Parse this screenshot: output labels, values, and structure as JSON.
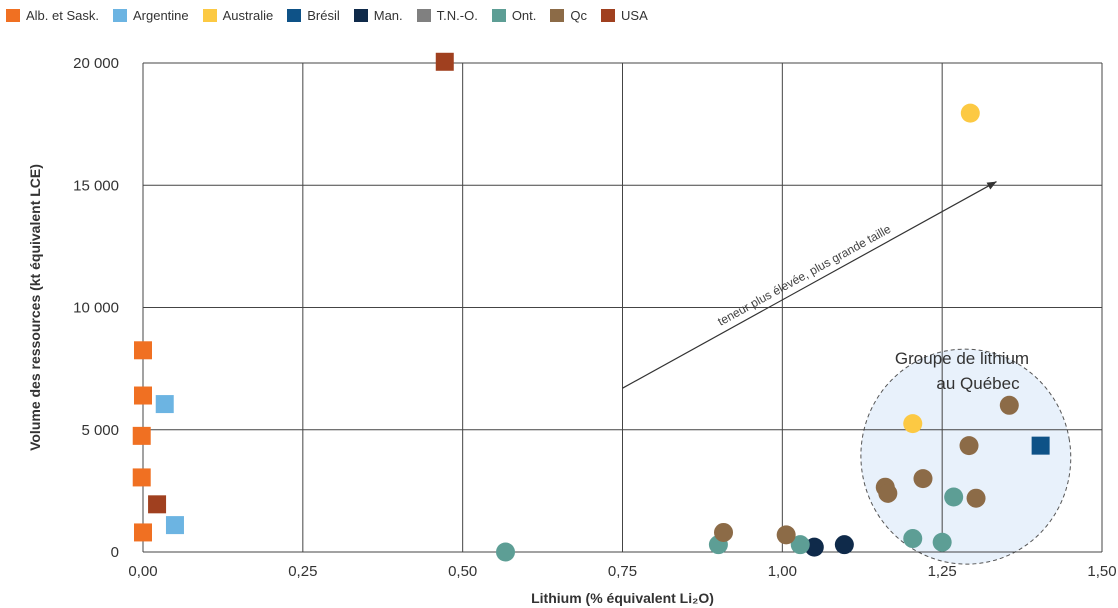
{
  "chart_data": {
    "type": "scatter",
    "xlabel": "Lithium (% équivalent Li₂O)",
    "ylabel": "Volume des ressources (kt équivalent LCE)",
    "xlim": [
      0,
      1.5
    ],
    "ylim": [
      0,
      20000
    ],
    "x_ticks": [
      "0,00",
      "0,25",
      "0,50",
      "0,75",
      "1,00",
      "1,25",
      "1,50"
    ],
    "y_ticks": [
      "0",
      "5 000",
      "10 000",
      "15 000",
      "20 000"
    ],
    "grid": true,
    "legend_position": "top-left",
    "series": [
      {
        "name": "Alb. et Sask.",
        "marker": "square",
        "color": "#f07022",
        "points": [
          [
            0.0,
            8250
          ],
          [
            0.0,
            6400
          ],
          [
            -0.002,
            4750
          ],
          [
            -0.002,
            3050
          ],
          [
            0.0,
            800
          ]
        ]
      },
      {
        "name": "Argentine",
        "marker": "square",
        "color": "#6cb4e2",
        "points": [
          [
            0.034,
            6050
          ],
          [
            0.05,
            1100
          ]
        ]
      },
      {
        "name": "Australie",
        "marker": "circle",
        "color": "#fcc943",
        "points": [
          [
            1.294,
            17950
          ],
          [
            1.204,
            5250
          ]
        ]
      },
      {
        "name": "Brésil",
        "marker": "square",
        "color": "#0e5287",
        "points": [
          [
            1.404,
            4350
          ]
        ]
      },
      {
        "name": "Man.",
        "marker": "circle",
        "color": "#0f2a4a",
        "points": [
          [
            1.05,
            200
          ],
          [
            1.097,
            300
          ]
        ]
      },
      {
        "name": "T.N.-O.",
        "marker": "square",
        "color": "#808080",
        "points": []
      },
      {
        "name": "Ont.",
        "marker": "circle",
        "color": "#5d9e95",
        "points": [
          [
            0.567,
            0
          ],
          [
            0.9,
            300
          ],
          [
            1.028,
            300
          ],
          [
            1.204,
            550
          ],
          [
            1.25,
            400
          ],
          [
            1.268,
            2250
          ]
        ]
      },
      {
        "name": "Qc",
        "marker": "circle",
        "color": "#8c6b47",
        "points": [
          [
            0.908,
            800
          ],
          [
            1.006,
            700
          ],
          [
            1.161,
            2650
          ],
          [
            1.165,
            2400
          ],
          [
            1.22,
            3000
          ],
          [
            1.292,
            4350
          ],
          [
            1.303,
            2200
          ],
          [
            1.355,
            6000
          ]
        ]
      },
      {
        "name": "USA",
        "marker": "square",
        "color": "#a0401f",
        "points": [
          [
            0.022,
            1950
          ],
          [
            0.472,
            20050
          ]
        ]
      }
    ],
    "annotations": {
      "group_label_line1": "Groupe de lithium",
      "group_label_line2": "au Québec",
      "arrow_label": "teneur plus élevée, plus grande taille",
      "arrow_start": [
        0.75,
        6700
      ],
      "arrow_end": [
        1.335,
        15150
      ],
      "ellipse": {
        "center": [
          1.287,
          3900
        ],
        "rx": 0.164,
        "ry": 4400,
        "fill": "#e8f1fb",
        "stroke": "#555555"
      }
    }
  }
}
